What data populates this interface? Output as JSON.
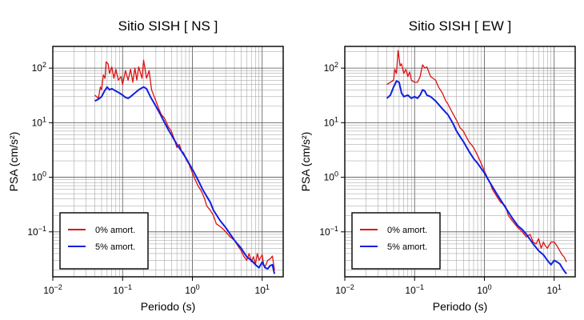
{
  "chart_data": [
    {
      "type": "line",
      "title": "Sitio SISH [ NS ]",
      "xlabel": "Periodo (s)",
      "ylabel": "PSA (cm/s²)",
      "xscale": "log",
      "yscale": "log",
      "xlim": [
        0.01,
        20
      ],
      "ylim": [
        0.015,
        250
      ],
      "grid": true,
      "legend_position": "bottom-left",
      "x_ticks": [
        {
          "v": 0.01,
          "base": "10",
          "exp": "−2"
        },
        {
          "v": 0.1,
          "base": "10",
          "exp": "−1"
        },
        {
          "v": 1,
          "base": "10",
          "exp": "0"
        },
        {
          "v": 10,
          "base": "10",
          "exp": "1"
        }
      ],
      "y_ticks": [
        {
          "v": 0.1,
          "base": "10",
          "exp": "−1"
        },
        {
          "v": 1,
          "base": "10",
          "exp": "0"
        },
        {
          "v": 10,
          "base": "10",
          "exp": "1"
        },
        {
          "v": 100,
          "base": "10",
          "exp": "2"
        }
      ],
      "series": [
        {
          "name": "0% amort.",
          "color": "#e01010",
          "points": [
            [
              0.04,
              32
            ],
            [
              0.045,
              28
            ],
            [
              0.048,
              45
            ],
            [
              0.05,
              40
            ],
            [
              0.053,
              75
            ],
            [
              0.056,
              65
            ],
            [
              0.058,
              130
            ],
            [
              0.062,
              120
            ],
            [
              0.065,
              80
            ],
            [
              0.07,
              105
            ],
            [
              0.075,
              65
            ],
            [
              0.08,
              95
            ],
            [
              0.087,
              60
            ],
            [
              0.095,
              70
            ],
            [
              0.1,
              50
            ],
            [
              0.11,
              90
            ],
            [
              0.12,
              60
            ],
            [
              0.13,
              95
            ],
            [
              0.14,
              55
            ],
            [
              0.15,
              100
            ],
            [
              0.16,
              60
            ],
            [
              0.17,
              105
            ],
            [
              0.19,
              65
            ],
            [
              0.2,
              140
            ],
            [
              0.22,
              65
            ],
            [
              0.24,
              90
            ],
            [
              0.26,
              40
            ],
            [
              0.3,
              25
            ],
            [
              0.33,
              18
            ],
            [
              0.36,
              14
            ],
            [
              0.4,
              12
            ],
            [
              0.45,
              8.5
            ],
            [
              0.5,
              7
            ],
            [
              0.55,
              5
            ],
            [
              0.6,
              3.5
            ],
            [
              0.65,
              4
            ],
            [
              0.7,
              3
            ],
            [
              0.75,
              2.8
            ],
            [
              0.8,
              2.2
            ],
            [
              0.9,
              1.7
            ],
            [
              1.0,
              1.2
            ],
            [
              1.1,
              0.9
            ],
            [
              1.2,
              0.7
            ],
            [
              1.3,
              0.6
            ],
            [
              1.4,
              0.5
            ],
            [
              1.5,
              0.4
            ],
            [
              1.6,
              0.3
            ],
            [
              1.8,
              0.25
            ],
            [
              2.0,
              0.2
            ],
            [
              2.2,
              0.14
            ],
            [
              2.4,
              0.13
            ],
            [
              2.6,
              0.12
            ],
            [
              2.8,
              0.11
            ],
            [
              3.0,
              0.1
            ],
            [
              3.5,
              0.08
            ],
            [
              4.0,
              0.07
            ],
            [
              4.5,
              0.055
            ],
            [
              5.0,
              0.045
            ],
            [
              5.5,
              0.035
            ],
            [
              6.0,
              0.03
            ],
            [
              6.5,
              0.04
            ],
            [
              7.0,
              0.028
            ],
            [
              7.5,
              0.035
            ],
            [
              8.0,
              0.025
            ],
            [
              8.5,
              0.04
            ],
            [
              9.0,
              0.03
            ],
            [
              10,
              0.038
            ],
            [
              10.5,
              0.025
            ],
            [
              11,
              0.023
            ],
            [
              12,
              0.03
            ],
            [
              13,
              0.032
            ],
            [
              14,
              0.036
            ],
            [
              15,
              0.02
            ]
          ]
        },
        {
          "name": "5% amort.",
          "color": "#1020e0",
          "points": [
            [
              0.04,
              25
            ],
            [
              0.045,
              27
            ],
            [
              0.05,
              30
            ],
            [
              0.055,
              38
            ],
            [
              0.06,
              45
            ],
            [
              0.065,
              40
            ],
            [
              0.07,
              42
            ],
            [
              0.08,
              38
            ],
            [
              0.09,
              35
            ],
            [
              0.1,
              32
            ],
            [
              0.11,
              29
            ],
            [
              0.12,
              28
            ],
            [
              0.13,
              30
            ],
            [
              0.15,
              35
            ],
            [
              0.17,
              40
            ],
            [
              0.2,
              45
            ],
            [
              0.22,
              42
            ],
            [
              0.25,
              30
            ],
            [
              0.3,
              20
            ],
            [
              0.35,
              14
            ],
            [
              0.4,
              10
            ],
            [
              0.45,
              7.5
            ],
            [
              0.5,
              6
            ],
            [
              0.6,
              4
            ],
            [
              0.7,
              3
            ],
            [
              0.8,
              2.3
            ],
            [
              1.0,
              1.4
            ],
            [
              1.2,
              0.9
            ],
            [
              1.4,
              0.6
            ],
            [
              1.6,
              0.45
            ],
            [
              1.8,
              0.35
            ],
            [
              2.0,
              0.25
            ],
            [
              2.5,
              0.16
            ],
            [
              3.0,
              0.12
            ],
            [
              3.5,
              0.09
            ],
            [
              4.0,
              0.07
            ],
            [
              5.0,
              0.05
            ],
            [
              6.0,
              0.035
            ],
            [
              7.0,
              0.03
            ],
            [
              8.0,
              0.025
            ],
            [
              9.0,
              0.022
            ],
            [
              10,
              0.028
            ],
            [
              11,
              0.022
            ],
            [
              12,
              0.021
            ],
            [
              13,
              0.024
            ],
            [
              14,
              0.025
            ],
            [
              15,
              0.017
            ]
          ]
        }
      ]
    },
    {
      "type": "line",
      "title": "Sitio SISH [ EW ]",
      "xlabel": "Periodo (s)",
      "ylabel": "PSA (cm/s²)",
      "xscale": "log",
      "yscale": "log",
      "xlim": [
        0.01,
        20
      ],
      "ylim": [
        0.015,
        250
      ],
      "grid": true,
      "legend_position": "bottom-left",
      "x_ticks": [
        {
          "v": 0.01,
          "base": "10",
          "exp": "−2"
        },
        {
          "v": 0.1,
          "base": "10",
          "exp": "−1"
        },
        {
          "v": 1,
          "base": "10",
          "exp": "0"
        },
        {
          "v": 10,
          "base": "10",
          "exp": "1"
        }
      ],
      "y_ticks": [
        {
          "v": 0.1,
          "base": "10",
          "exp": "−1"
        },
        {
          "v": 1,
          "base": "10",
          "exp": "0"
        },
        {
          "v": 10,
          "base": "10",
          "exp": "1"
        },
        {
          "v": 100,
          "base": "10",
          "exp": "2"
        }
      ],
      "series": [
        {
          "name": "0% amort.",
          "color": "#e01010",
          "points": [
            [
              0.04,
              50
            ],
            [
              0.045,
              55
            ],
            [
              0.05,
              60
            ],
            [
              0.052,
              95
            ],
            [
              0.055,
              80
            ],
            [
              0.058,
              210
            ],
            [
              0.062,
              110
            ],
            [
              0.065,
              120
            ],
            [
              0.07,
              80
            ],
            [
              0.075,
              95
            ],
            [
              0.08,
              70
            ],
            [
              0.085,
              85
            ],
            [
              0.09,
              60
            ],
            [
              0.1,
              55
            ],
            [
              0.11,
              55
            ],
            [
              0.12,
              70
            ],
            [
              0.13,
              115
            ],
            [
              0.14,
              100
            ],
            [
              0.15,
              105
            ],
            [
              0.17,
              70
            ],
            [
              0.2,
              60
            ],
            [
              0.22,
              45
            ],
            [
              0.25,
              35
            ],
            [
              0.28,
              25
            ],
            [
              0.3,
              22
            ],
            [
              0.35,
              15
            ],
            [
              0.4,
              11
            ],
            [
              0.45,
              8
            ],
            [
              0.5,
              7
            ],
            [
              0.55,
              5.5
            ],
            [
              0.6,
              4.5
            ],
            [
              0.7,
              3.5
            ],
            [
              0.8,
              2.5
            ],
            [
              0.9,
              1.8
            ],
            [
              1.0,
              1.3
            ],
            [
              1.1,
              1.0
            ],
            [
              1.2,
              0.8
            ],
            [
              1.3,
              0.6
            ],
            [
              1.5,
              0.45
            ],
            [
              1.7,
              0.35
            ],
            [
              2.0,
              0.3
            ],
            [
              2.2,
              0.2
            ],
            [
              2.5,
              0.16
            ],
            [
              3.0,
              0.12
            ],
            [
              3.5,
              0.1
            ],
            [
              4.0,
              0.08
            ],
            [
              4.5,
              0.09
            ],
            [
              5.0,
              0.065
            ],
            [
              5.5,
              0.06
            ],
            [
              6.0,
              0.075
            ],
            [
              6.5,
              0.05
            ],
            [
              7.0,
              0.065
            ],
            [
              7.5,
              0.055
            ],
            [
              8.0,
              0.05
            ],
            [
              9.0,
              0.065
            ],
            [
              10,
              0.065
            ],
            [
              11,
              0.055
            ],
            [
              12,
              0.045
            ],
            [
              13,
              0.038
            ],
            [
              14,
              0.034
            ],
            [
              15,
              0.028
            ]
          ]
        },
        {
          "name": "5% amort.",
          "color": "#1020e0",
          "points": [
            [
              0.04,
              28
            ],
            [
              0.045,
              32
            ],
            [
              0.05,
              45
            ],
            [
              0.055,
              58
            ],
            [
              0.06,
              55
            ],
            [
              0.065,
              35
            ],
            [
              0.07,
              30
            ],
            [
              0.08,
              32
            ],
            [
              0.09,
              28
            ],
            [
              0.1,
              30
            ],
            [
              0.11,
              28
            ],
            [
              0.12,
              32
            ],
            [
              0.13,
              40
            ],
            [
              0.14,
              38
            ],
            [
              0.15,
              32
            ],
            [
              0.17,
              30
            ],
            [
              0.2,
              25
            ],
            [
              0.25,
              18
            ],
            [
              0.3,
              14
            ],
            [
              0.35,
              10
            ],
            [
              0.4,
              7
            ],
            [
              0.45,
              5.5
            ],
            [
              0.5,
              4.5
            ],
            [
              0.6,
              3
            ],
            [
              0.7,
              2.2
            ],
            [
              0.8,
              1.8
            ],
            [
              1.0,
              1.2
            ],
            [
              1.2,
              0.8
            ],
            [
              1.5,
              0.5
            ],
            [
              2.0,
              0.28
            ],
            [
              2.5,
              0.18
            ],
            [
              3.0,
              0.13
            ],
            [
              3.5,
              0.11
            ],
            [
              4.0,
              0.09
            ],
            [
              5.0,
              0.06
            ],
            [
              6.0,
              0.045
            ],
            [
              7.0,
              0.038
            ],
            [
              8.0,
              0.03
            ],
            [
              9.0,
              0.025
            ],
            [
              10,
              0.03
            ],
            [
              11,
              0.028
            ],
            [
              12,
              0.026
            ],
            [
              13,
              0.022
            ],
            [
              14,
              0.019
            ],
            [
              15,
              0.017
            ]
          ]
        }
      ]
    }
  ]
}
